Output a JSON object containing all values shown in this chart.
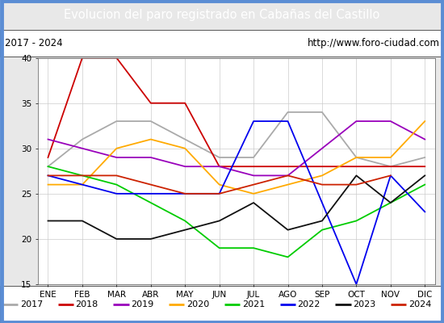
{
  "title": "Evolucion del paro registrado en Cabañas del Castillo",
  "subtitle_left": "2017 - 2024",
  "subtitle_right": "http://www.foro-ciudad.com",
  "title_bg_color": "#5b8dd4",
  "title_text_color": "#ffffff",
  "months": [
    "ENE",
    "FEB",
    "MAR",
    "ABR",
    "MAY",
    "JUN",
    "JUL",
    "AGO",
    "SEP",
    "OCT",
    "NOV",
    "DIC"
  ],
  "ylim": [
    15,
    40
  ],
  "yticks": [
    15,
    20,
    25,
    30,
    35,
    40
  ],
  "series": {
    "2017": {
      "color": "#aaaaaa",
      "data": [
        28,
        31,
        33,
        33,
        31,
        29,
        29,
        34,
        34,
        29,
        28,
        29
      ]
    },
    "2018": {
      "color": "#cc0000",
      "data": [
        29,
        40,
        40,
        35,
        35,
        28,
        28,
        28,
        28,
        28,
        28,
        28
      ]
    },
    "2019": {
      "color": "#9900bb",
      "data": [
        31,
        30,
        29,
        29,
        28,
        28,
        27,
        27,
        30,
        33,
        33,
        31
      ]
    },
    "2020": {
      "color": "#ffaa00",
      "data": [
        26,
        26,
        30,
        31,
        30,
        26,
        25,
        26,
        27,
        29,
        29,
        33
      ]
    },
    "2021": {
      "color": "#00cc00",
      "data": [
        28,
        27,
        26,
        24,
        22,
        19,
        19,
        18,
        21,
        22,
        24,
        26
      ]
    },
    "2022": {
      "color": "#0000ee",
      "data": [
        27,
        26,
        25,
        25,
        25,
        25,
        33,
        33,
        24,
        15,
        27,
        23
      ]
    },
    "2023": {
      "color": "#111111",
      "data": [
        22,
        22,
        20,
        20,
        21,
        22,
        24,
        21,
        22,
        27,
        24,
        27
      ]
    },
    "2024": {
      "color": "#cc2200",
      "data": [
        27,
        27,
        27,
        26,
        25,
        25,
        26,
        27,
        26,
        26,
        27,
        null
      ]
    }
  },
  "bg_color": "#e8e8e8",
  "plot_bg_color": "#ffffff",
  "grid_color": "#cccccc",
  "border_color": "#555555",
  "outer_border_color": "#5b8dd4"
}
